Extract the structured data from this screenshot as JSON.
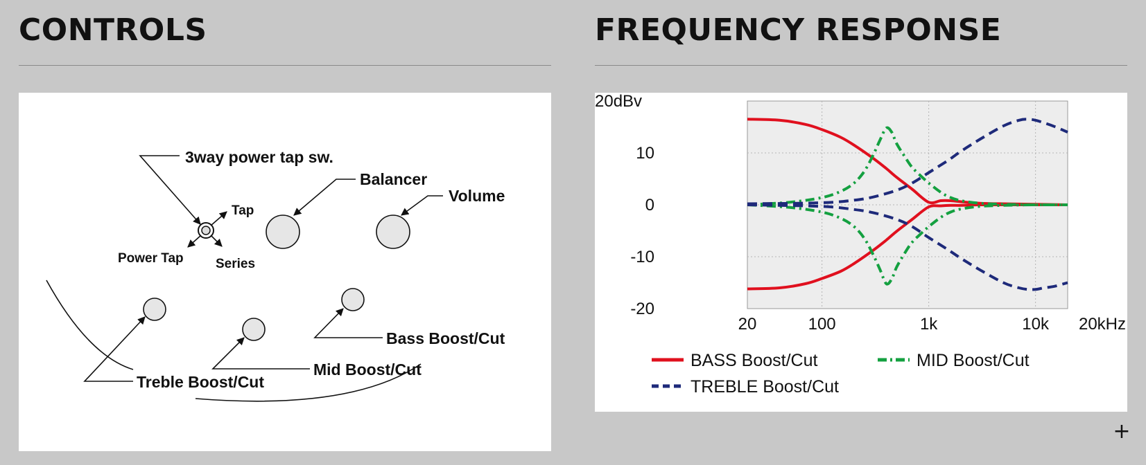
{
  "controls": {
    "title": "CONTROLS",
    "labels": {
      "power_tap_switch": "3way power tap sw.",
      "tap": "Tap",
      "power_tap": "Power Tap",
      "series": "Series",
      "balancer": "Balancer",
      "volume": "Volume",
      "bass": "Bass Boost/Cut",
      "mid": "Mid Boost/Cut",
      "treble": "Treble Boost/Cut"
    }
  },
  "frequency_response": {
    "title": "FREQUENCY RESPONSE"
  },
  "expand_icon": "plus-icon",
  "chart_data": {
    "type": "line",
    "x_scale": "log",
    "xlim": [
      20,
      20000
    ],
    "ylim": [
      -20,
      20
    ],
    "x_ticks": [
      {
        "value": 20,
        "label": "20"
      },
      {
        "value": 100,
        "label": "100"
      },
      {
        "value": 1000,
        "label": "1k"
      },
      {
        "value": 10000,
        "label": "10k"
      },
      {
        "value": 20000,
        "label": "20kHz"
      }
    ],
    "y_ticks": [
      {
        "value": 20,
        "label": "20dBv"
      },
      {
        "value": 10,
        "label": "10"
      },
      {
        "value": 0,
        "label": "0"
      },
      {
        "value": -10,
        "label": "-10"
      },
      {
        "value": -20,
        "label": "-20"
      }
    ],
    "grid": true,
    "legend_position": "bottom",
    "series": [
      {
        "name": "BASS Boost/Cut",
        "color": "#e0101e",
        "dash": "solid",
        "lines": [
          {
            "x": [
              20,
              40,
              70,
              100,
              150,
              200,
              300,
              400,
              500,
              700,
              1000,
              1300,
              1600,
              2000,
              3000,
              5000,
              10000,
              20000
            ],
            "y": [
              16.5,
              16.3,
              15.5,
              14.5,
              13,
              11.5,
              9,
              7,
              5.3,
              3,
              0.5,
              0.8,
              0.8,
              0.6,
              0.3,
              0.2,
              0.1,
              0
            ]
          },
          {
            "x": [
              20,
              40,
              70,
              100,
              150,
              200,
              300,
              400,
              500,
              700,
              1000,
              1300,
              1600,
              2000,
              3000,
              5000,
              10000,
              20000
            ],
            "y": [
              -16.2,
              -16,
              -15.2,
              -14.2,
              -12.8,
              -11.3,
              -8.8,
              -6.8,
              -5.1,
              -2.8,
              -0.4,
              -0.2,
              -0.1,
              -0.1,
              0,
              0,
              0,
              0
            ]
          }
        ]
      },
      {
        "name": "MID Boost/Cut",
        "color": "#14a040",
        "dash": "dash-dot",
        "lines": [
          {
            "x": [
              20,
              50,
              100,
              150,
              200,
              250,
              300,
              350,
              400,
              450,
              500,
              600,
              700,
              850,
              1000,
              1300,
              1600,
              2000,
              3000,
              5000,
              10000,
              20000
            ],
            "y": [
              0,
              0.5,
              1.4,
              2.6,
              4.2,
              6.5,
              9.5,
              12.5,
              14.8,
              14,
              11.8,
              9.2,
              7.2,
              5.5,
              4.2,
              2.4,
              1.4,
              0.8,
              0.3,
              0.1,
              0,
              0
            ]
          },
          {
            "x": [
              20,
              50,
              100,
              150,
              200,
              250,
              300,
              350,
              400,
              450,
              500,
              600,
              700,
              850,
              1000,
              1300,
              1600,
              2000,
              3000,
              5000,
              10000,
              20000
            ],
            "y": [
              0,
              -0.5,
              -1.4,
              -2.6,
              -4.2,
              -6.5,
              -9.5,
              -12.5,
              -15.2,
              -14.3,
              -12,
              -9.2,
              -7.2,
              -5.5,
              -4.2,
              -2.4,
              -1.4,
              -0.8,
              -0.3,
              -0.1,
              0,
              0
            ]
          }
        ]
      },
      {
        "name": "TREBLE Boost/Cut",
        "color": "#1e2a7a",
        "dash": "dashed",
        "lines": [
          {
            "x": [
              20,
              100,
              200,
              300,
              500,
              700,
              1000,
              1500,
              2000,
              3000,
              5000,
              7000,
              8500,
              10000,
              12000,
              15000,
              20000
            ],
            "y": [
              0.2,
              0.4,
              0.9,
              1.5,
              2.8,
              4.2,
              6.2,
              8.5,
              10.3,
              12.6,
              15.2,
              16.3,
              16.5,
              16.3,
              15.8,
              15.1,
              14
            ]
          },
          {
            "x": [
              20,
              100,
              200,
              300,
              500,
              700,
              1000,
              1500,
              2000,
              3000,
              5000,
              7000,
              8500,
              10000,
              12000,
              15000,
              20000
            ],
            "y": [
              0,
              -0.3,
              -0.9,
              -1.5,
              -2.8,
              -4.2,
              -6.3,
              -8.6,
              -10.3,
              -12.5,
              -15,
              -16,
              -16.3,
              -16.3,
              -16,
              -15.7,
              -15
            ]
          }
        ]
      }
    ]
  }
}
